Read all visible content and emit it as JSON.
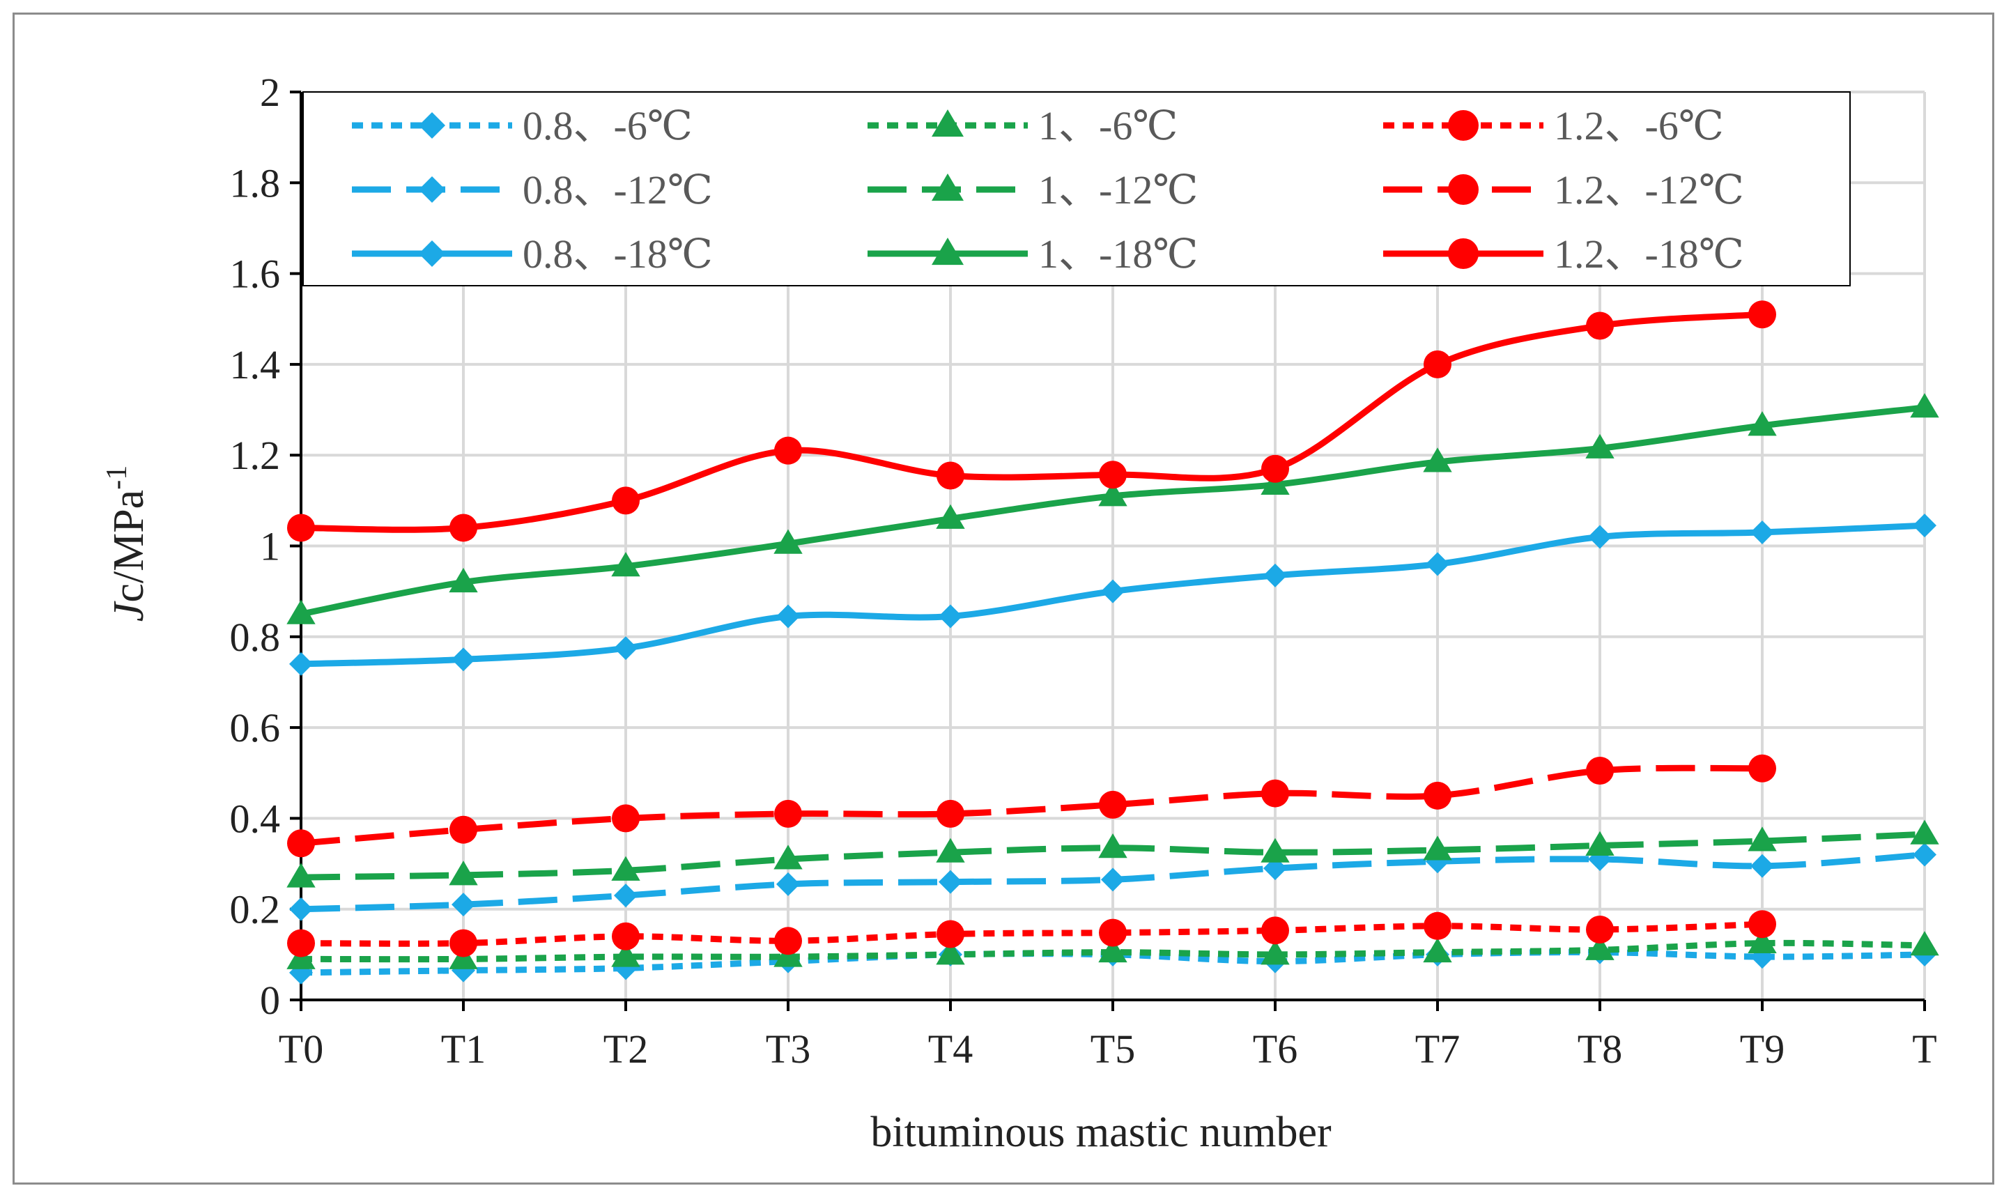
{
  "chart_data": {
    "type": "line",
    "title": "",
    "xlabel": "bituminous mastic number",
    "ylabel": {
      "main": "Jc/MPa",
      "superscript": "-1"
    },
    "categories": [
      "T0",
      "T1",
      "T2",
      "T3",
      "T4",
      "T5",
      "T6",
      "T7",
      "T8",
      "T9",
      "T"
    ],
    "ylim": [
      0,
      2
    ],
    "yticks": [
      "0",
      "0.2",
      "0.4",
      "0.6",
      "0.8",
      "1",
      "1.2",
      "1.4",
      "1.6",
      "1.8",
      "2"
    ],
    "grid": true,
    "legend_position": "top",
    "series": [
      {
        "name": "0.8、-6℃",
        "color": "#1ca9e6",
        "dash": "short",
        "marker": "diamond",
        "values": [
          0.06,
          0.065,
          0.07,
          0.085,
          0.1,
          0.1,
          0.085,
          0.1,
          0.105,
          0.095,
          0.1
        ]
      },
      {
        "name": "1、-6℃",
        "color": "#1aa34a",
        "dash": "short",
        "marker": "triangle",
        "values": [
          0.09,
          0.09,
          0.095,
          0.095,
          0.1,
          0.105,
          0.1,
          0.105,
          0.11,
          0.125,
          0.12
        ]
      },
      {
        "name": "1.2、-6℃",
        "color": "#ff0000",
        "dash": "short",
        "marker": "circle",
        "values": [
          0.125,
          0.125,
          0.14,
          0.13,
          0.145,
          0.148,
          0.153,
          0.163,
          0.155,
          0.167,
          null
        ]
      },
      {
        "name": "0.8、-12℃",
        "color": "#1ca9e6",
        "dash": "long",
        "marker": "diamond",
        "values": [
          0.2,
          0.21,
          0.23,
          0.255,
          0.26,
          0.265,
          0.29,
          0.305,
          0.31,
          0.295,
          0.32
        ]
      },
      {
        "name": "1、-12℃",
        "color": "#1aa34a",
        "dash": "long",
        "marker": "triangle",
        "values": [
          0.27,
          0.275,
          0.285,
          0.31,
          0.325,
          0.335,
          0.325,
          0.33,
          0.34,
          0.35,
          0.365
        ]
      },
      {
        "name": "1.2、-12℃",
        "color": "#ff0000",
        "dash": "long",
        "marker": "circle",
        "values": [
          0.345,
          0.375,
          0.4,
          0.41,
          0.41,
          0.43,
          0.455,
          0.45,
          0.505,
          0.51,
          null
        ]
      },
      {
        "name": "0.8、-18℃",
        "color": "#1ca9e6",
        "dash": "solid",
        "marker": "diamond",
        "values": [
          0.74,
          0.75,
          0.775,
          0.845,
          0.845,
          0.9,
          0.935,
          0.96,
          1.02,
          1.03,
          1.045
        ]
      },
      {
        "name": "1、-18℃",
        "color": "#1aa34a",
        "dash": "solid",
        "marker": "triangle",
        "values": [
          0.85,
          0.92,
          0.955,
          1.005,
          1.06,
          1.11,
          1.135,
          1.185,
          1.215,
          1.265,
          1.305
        ]
      },
      {
        "name": "1.2、-18℃",
        "color": "#ff0000",
        "dash": "solid",
        "marker": "circle",
        "values": [
          1.04,
          1.04,
          1.1,
          1.21,
          1.155,
          1.157,
          1.17,
          1.4,
          1.485,
          1.51,
          null
        ]
      }
    ]
  }
}
